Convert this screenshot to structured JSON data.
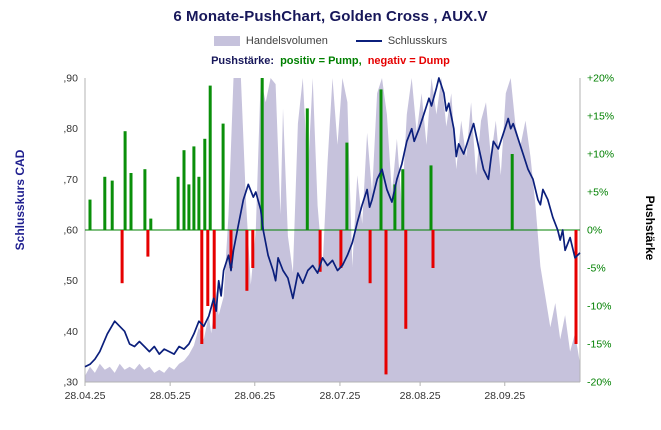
{
  "title": "6 Monate-PushChart, Golden Cross , AUX.V",
  "legend": {
    "volume_label": "Handelsvolumen",
    "close_label": "Schlusskurs",
    "push_label": "Pushstärke:",
    "pump_label": "positiv = Pump,",
    "dump_label": "negativ = Dump"
  },
  "colors": {
    "volume": "#c6c2dc",
    "close_line": "#0b1f7c",
    "pump": "#0a8f0a",
    "dump": "#e60000",
    "zero_line": "#008000",
    "right_axis_text": "#008000",
    "title_text": "#17175a",
    "left_axis_title": "#1f1f8f",
    "right_axis_title": "#000000",
    "axis_line": "#b3b3b3",
    "tick_text": "#333333"
  },
  "chart_data": {
    "type": "combo",
    "title": "6 Monate-PushChart, Golden Cross , AUX.V",
    "grid": false,
    "legend_position": "top",
    "x_ticks": [
      {
        "f": 0.0,
        "label": "28.04.25"
      },
      {
        "f": 0.172,
        "label": "28.05.25"
      },
      {
        "f": 0.343,
        "label": "28.06.25"
      },
      {
        "f": 0.515,
        "label": "28.07.25"
      },
      {
        "f": 0.677,
        "label": "28.08.25"
      },
      {
        "f": 0.848,
        "label": "28.09.25"
      }
    ],
    "y_left": {
      "label": "Schlusskurs CAD",
      "range": [
        0.3,
        0.9
      ],
      "ticks": [
        {
          "v": 0.3,
          "label": ",30"
        },
        {
          "v": 0.4,
          "label": ",40"
        },
        {
          "v": 0.5,
          "label": ",50"
        },
        {
          "v": 0.6,
          "label": ",60"
        },
        {
          "v": 0.7,
          "label": ",70"
        },
        {
          "v": 0.8,
          "label": ",80"
        },
        {
          "v": 0.9,
          "label": ",90"
        }
      ]
    },
    "y_right": {
      "label": "Pushstärke",
      "range": [
        -20,
        20
      ],
      "ticks": [
        {
          "v": -20,
          "label": "-20%"
        },
        {
          "v": -15,
          "label": "-15%"
        },
        {
          "v": -10,
          "label": "-10%"
        },
        {
          "v": -5,
          "label": "-5%"
        },
        {
          "v": 0,
          "label": "0%"
        },
        {
          "v": 5,
          "label": "+5%"
        },
        {
          "v": 10,
          "label": "+10%"
        },
        {
          "v": 15,
          "label": "+15%"
        },
        {
          "v": 20,
          "label": "+20%"
        }
      ]
    },
    "series": [
      {
        "name": "Handelsvolumen",
        "type": "area",
        "axis": "relative-height-percent",
        "points": [
          [
            0.0,
            2
          ],
          [
            0.01,
            5
          ],
          [
            0.02,
            3
          ],
          [
            0.03,
            6
          ],
          [
            0.04,
            4
          ],
          [
            0.05,
            5
          ],
          [
            0.06,
            3
          ],
          [
            0.07,
            6
          ],
          [
            0.08,
            4
          ],
          [
            0.09,
            5
          ],
          [
            0.1,
            4
          ],
          [
            0.11,
            6
          ],
          [
            0.12,
            4
          ],
          [
            0.13,
            5
          ],
          [
            0.14,
            3
          ],
          [
            0.15,
            4
          ],
          [
            0.16,
            3
          ],
          [
            0.17,
            5
          ],
          [
            0.18,
            4
          ],
          [
            0.19,
            6
          ],
          [
            0.2,
            7
          ],
          [
            0.21,
            9
          ],
          [
            0.22,
            12
          ],
          [
            0.23,
            18
          ],
          [
            0.24,
            14
          ],
          [
            0.25,
            22
          ],
          [
            0.255,
            16
          ],
          [
            0.265,
            30
          ],
          [
            0.27,
            22
          ],
          [
            0.28,
            28
          ],
          [
            0.29,
            55
          ],
          [
            0.3,
            100
          ],
          [
            0.315,
            100
          ],
          [
            0.325,
            60
          ],
          [
            0.335,
            32
          ],
          [
            0.345,
            50
          ],
          [
            0.355,
            100
          ],
          [
            0.365,
            92
          ],
          [
            0.375,
            100
          ],
          [
            0.385,
            98
          ],
          [
            0.395,
            55
          ],
          [
            0.4,
            90
          ],
          [
            0.41,
            48
          ],
          [
            0.42,
            36
          ],
          [
            0.43,
            85
          ],
          [
            0.44,
            100
          ],
          [
            0.45,
            68
          ],
          [
            0.46,
            100
          ],
          [
            0.47,
            58
          ],
          [
            0.48,
            38
          ],
          [
            0.49,
            72
          ],
          [
            0.5,
            100
          ],
          [
            0.51,
            78
          ],
          [
            0.52,
            100
          ],
          [
            0.53,
            92
          ],
          [
            0.54,
            38
          ],
          [
            0.55,
            68
          ],
          [
            0.56,
            52
          ],
          [
            0.57,
            82
          ],
          [
            0.58,
            62
          ],
          [
            0.59,
            95
          ],
          [
            0.6,
            100
          ],
          [
            0.61,
            88
          ],
          [
            0.62,
            62
          ],
          [
            0.63,
            80
          ],
          [
            0.64,
            58
          ],
          [
            0.65,
            88
          ],
          [
            0.66,
            100
          ],
          [
            0.67,
            82
          ],
          [
            0.68,
            95
          ],
          [
            0.69,
            78
          ],
          [
            0.7,
            100
          ],
          [
            0.71,
            88
          ],
          [
            0.72,
            100
          ],
          [
            0.73,
            84
          ],
          [
            0.74,
            95
          ],
          [
            0.75,
            70
          ],
          [
            0.76,
            86
          ],
          [
            0.77,
            74
          ],
          [
            0.78,
            92
          ],
          [
            0.79,
            68
          ],
          [
            0.8,
            86
          ],
          [
            0.81,
            92
          ],
          [
            0.82,
            74
          ],
          [
            0.83,
            86
          ],
          [
            0.84,
            68
          ],
          [
            0.85,
            95
          ],
          [
            0.86,
            100
          ],
          [
            0.87,
            84
          ],
          [
            0.88,
            78
          ],
          [
            0.89,
            86
          ],
          [
            0.9,
            74
          ],
          [
            0.91,
            58
          ],
          [
            0.92,
            38
          ],
          [
            0.93,
            28
          ],
          [
            0.94,
            18
          ],
          [
            0.95,
            26
          ],
          [
            0.96,
            14
          ],
          [
            0.97,
            22
          ],
          [
            0.98,
            10
          ],
          [
            0.99,
            16
          ],
          [
            1.0,
            6
          ]
        ]
      },
      {
        "name": "Pushstärke Pump",
        "type": "bar",
        "axis": "right",
        "points": [
          [
            0.01,
            4
          ],
          [
            0.04,
            7
          ],
          [
            0.055,
            6.5
          ],
          [
            0.081,
            13
          ],
          [
            0.093,
            7.5
          ],
          [
            0.121,
            8
          ],
          [
            0.133,
            1.5
          ],
          [
            0.188,
            7
          ],
          [
            0.2,
            10.5
          ],
          [
            0.21,
            6
          ],
          [
            0.22,
            11
          ],
          [
            0.23,
            7
          ],
          [
            0.242,
            12
          ],
          [
            0.253,
            19
          ],
          [
            0.279,
            14
          ],
          [
            0.358,
            20
          ],
          [
            0.449,
            16
          ],
          [
            0.529,
            11.5
          ],
          [
            0.598,
            18.5
          ],
          [
            0.626,
            6
          ],
          [
            0.642,
            8
          ],
          [
            0.699,
            8.5
          ],
          [
            0.863,
            10
          ]
        ]
      },
      {
        "name": "Pushstärke Dump",
        "type": "bar",
        "axis": "right",
        "points": [
          [
            0.075,
            -7
          ],
          [
            0.127,
            -3.5
          ],
          [
            0.236,
            -15
          ],
          [
            0.248,
            -10
          ],
          [
            0.261,
            -13
          ],
          [
            0.295,
            -5
          ],
          [
            0.327,
            -8
          ],
          [
            0.339,
            -5
          ],
          [
            0.475,
            -5.5
          ],
          [
            0.517,
            -5
          ],
          [
            0.576,
            -7
          ],
          [
            0.608,
            -19
          ],
          [
            0.648,
            -13
          ],
          [
            0.703,
            -5
          ],
          [
            0.992,
            -15
          ]
        ]
      },
      {
        "name": "Schlusskurs",
        "type": "line",
        "axis": "left",
        "points": [
          [
            0.0,
            0.33
          ],
          [
            0.01,
            0.335
          ],
          [
            0.02,
            0.345
          ],
          [
            0.03,
            0.36
          ],
          [
            0.045,
            0.395
          ],
          [
            0.06,
            0.42
          ],
          [
            0.07,
            0.41
          ],
          [
            0.08,
            0.4
          ],
          [
            0.09,
            0.375
          ],
          [
            0.1,
            0.37
          ],
          [
            0.11,
            0.38
          ],
          [
            0.12,
            0.37
          ],
          [
            0.13,
            0.36
          ],
          [
            0.14,
            0.37
          ],
          [
            0.15,
            0.355
          ],
          [
            0.16,
            0.365
          ],
          [
            0.17,
            0.36
          ],
          [
            0.18,
            0.355
          ],
          [
            0.19,
            0.37
          ],
          [
            0.2,
            0.365
          ],
          [
            0.21,
            0.375
          ],
          [
            0.22,
            0.395
          ],
          [
            0.23,
            0.42
          ],
          [
            0.24,
            0.41
          ],
          [
            0.25,
            0.43
          ],
          [
            0.26,
            0.465
          ],
          [
            0.265,
            0.44
          ],
          [
            0.27,
            0.5
          ],
          [
            0.275,
            0.47
          ],
          [
            0.28,
            0.52
          ],
          [
            0.29,
            0.55
          ],
          [
            0.295,
            0.52
          ],
          [
            0.3,
            0.56
          ],
          [
            0.31,
            0.61
          ],
          [
            0.32,
            0.66
          ],
          [
            0.33,
            0.69
          ],
          [
            0.34,
            0.665
          ],
          [
            0.345,
            0.675
          ],
          [
            0.355,
            0.64
          ],
          [
            0.36,
            0.6
          ],
          [
            0.37,
            0.55
          ],
          [
            0.38,
            0.52
          ],
          [
            0.385,
            0.5
          ],
          [
            0.39,
            0.545
          ],
          [
            0.4,
            0.52
          ],
          [
            0.41,
            0.505
          ],
          [
            0.42,
            0.465
          ],
          [
            0.43,
            0.515
          ],
          [
            0.44,
            0.495
          ],
          [
            0.45,
            0.52
          ],
          [
            0.46,
            0.53
          ],
          [
            0.47,
            0.515
          ],
          [
            0.48,
            0.545
          ],
          [
            0.49,
            0.53
          ],
          [
            0.5,
            0.54
          ],
          [
            0.51,
            0.52
          ],
          [
            0.52,
            0.53
          ],
          [
            0.53,
            0.55
          ],
          [
            0.54,
            0.575
          ],
          [
            0.55,
            0.615
          ],
          [
            0.56,
            0.65
          ],
          [
            0.57,
            0.68
          ],
          [
            0.575,
            0.645
          ],
          [
            0.58,
            0.66
          ],
          [
            0.59,
            0.7
          ],
          [
            0.6,
            0.72
          ],
          [
            0.61,
            0.68
          ],
          [
            0.62,
            0.655
          ],
          [
            0.63,
            0.7
          ],
          [
            0.64,
            0.73
          ],
          [
            0.65,
            0.775
          ],
          [
            0.66,
            0.8
          ],
          [
            0.665,
            0.775
          ],
          [
            0.675,
            0.8
          ],
          [
            0.685,
            0.83
          ],
          [
            0.695,
            0.86
          ],
          [
            0.7,
            0.845
          ],
          [
            0.71,
            0.88
          ],
          [
            0.715,
            0.9
          ],
          [
            0.725,
            0.87
          ],
          [
            0.73,
            0.835
          ],
          [
            0.735,
            0.85
          ],
          [
            0.745,
            0.8
          ],
          [
            0.75,
            0.745
          ],
          [
            0.755,
            0.77
          ],
          [
            0.765,
            0.75
          ],
          [
            0.775,
            0.78
          ],
          [
            0.785,
            0.81
          ],
          [
            0.795,
            0.765
          ],
          [
            0.805,
            0.72
          ],
          [
            0.815,
            0.7
          ],
          [
            0.82,
            0.74
          ],
          [
            0.825,
            0.775
          ],
          [
            0.835,
            0.76
          ],
          [
            0.845,
            0.79
          ],
          [
            0.855,
            0.82
          ],
          [
            0.86,
            0.8
          ],
          [
            0.865,
            0.81
          ],
          [
            0.875,
            0.78
          ],
          [
            0.885,
            0.75
          ],
          [
            0.895,
            0.72
          ],
          [
            0.905,
            0.7
          ],
          [
            0.915,
            0.66
          ],
          [
            0.92,
            0.65
          ],
          [
            0.925,
            0.68
          ],
          [
            0.935,
            0.66
          ],
          [
            0.945,
            0.625
          ],
          [
            0.955,
            0.6
          ],
          [
            0.96,
            0.58
          ],
          [
            0.965,
            0.6
          ],
          [
            0.97,
            0.56
          ],
          [
            0.98,
            0.585
          ],
          [
            0.99,
            0.545
          ],
          [
            1.0,
            0.555
          ]
        ]
      }
    ]
  }
}
